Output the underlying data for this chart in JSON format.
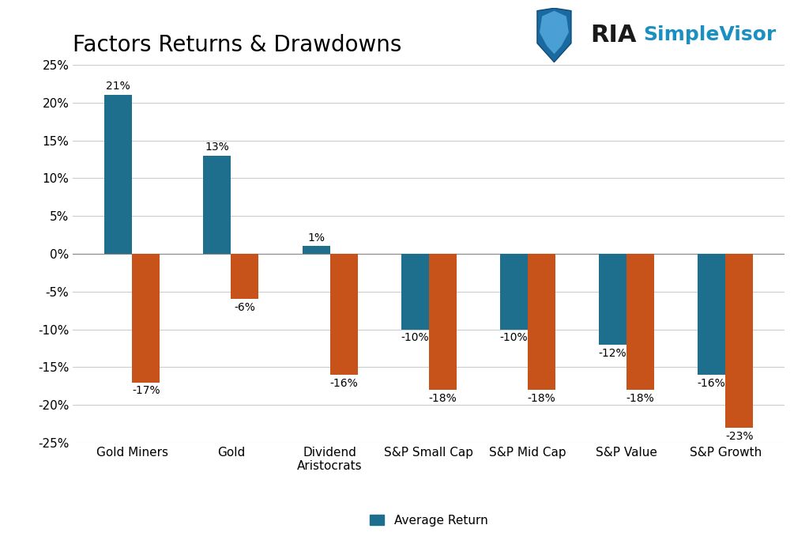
{
  "title": "Factors Returns & Drawdowns",
  "categories": [
    "Gold Miners",
    "Gold",
    "Dividend\nAristocrats",
    "S&P Small Cap",
    "S&P Mid Cap",
    "S&P Value",
    "S&P Growth"
  ],
  "returns": [
    21,
    13,
    1,
    -10,
    -10,
    -12,
    -16
  ],
  "drawdowns": [
    -17,
    -6,
    -16,
    -18,
    -18,
    -18,
    -23
  ],
  "return_color": "#1e6e8e",
  "drawdown_color": "#c8531a",
  "bar_width": 0.28,
  "ylim": [
    -25,
    25
  ],
  "yticks": [
    -25,
    -20,
    -15,
    -10,
    -5,
    0,
    5,
    10,
    15,
    20,
    25
  ],
  "ytick_labels": [
    "-25%",
    "-20%",
    "-15%",
    "-10%",
    "-5%",
    "0%",
    "5%",
    "10%",
    "15%",
    "20%",
    "25%"
  ],
  "legend_label_return": "Average Return",
  "background_color": "#ffffff",
  "grid_color": "#cccccc",
  "title_fontsize": 20,
  "label_fontsize": 11,
  "tick_fontsize": 11,
  "annotation_fontsize": 10,
  "logo_ria_color": "#1a1a1a",
  "logo_sv_color": "#1a8fc1",
  "logo_ria_fontsize": 22,
  "logo_sv_fontsize": 18
}
